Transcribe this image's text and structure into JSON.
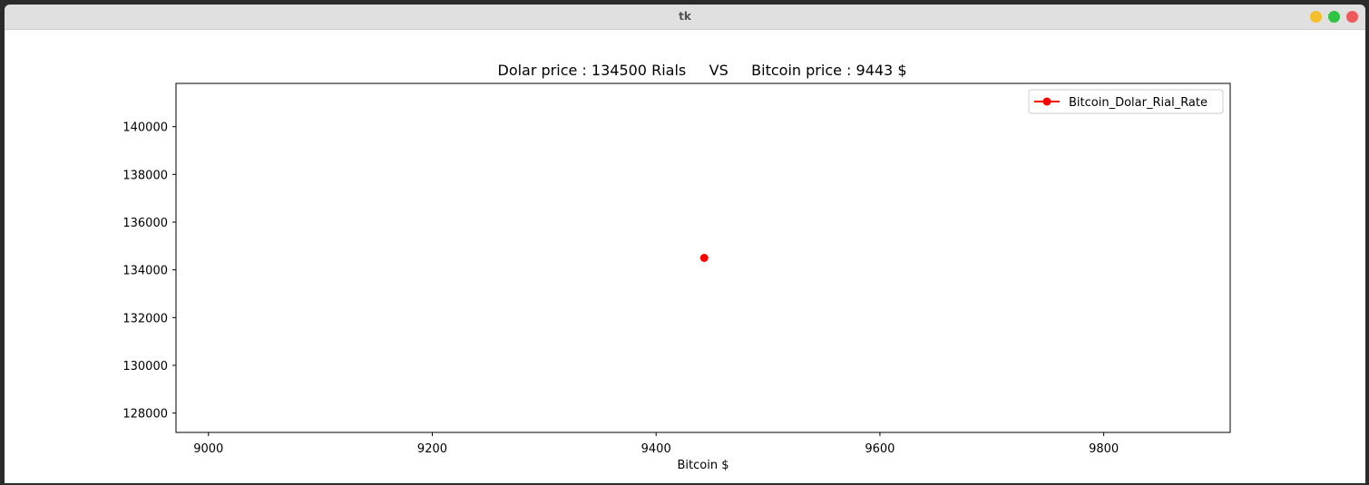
{
  "window": {
    "title": "tk",
    "buttons": {
      "minimize_color": "#f5bf2c",
      "maximize_color": "#2fc43f",
      "close_color": "#f0595a"
    }
  },
  "chart_data": {
    "type": "line",
    "title": "Dolar price : 134500 Rials     VS     Bitcoin price : 9443 $",
    "xlabel": "Bitcoin $",
    "ylabel": "",
    "xlim": [
      8971,
      9913
    ],
    "ylim": [
      127189,
      141811
    ],
    "xticks": [
      9000,
      9200,
      9400,
      9600,
      9800
    ],
    "xtick_labels": [
      "9000",
      "9200",
      "9400",
      "9600",
      "9800"
    ],
    "yticks": [
      128000,
      130000,
      132000,
      134000,
      136000,
      138000,
      140000
    ],
    "ytick_labels": [
      "128000",
      "130000",
      "132000",
      "134000",
      "136000",
      "138000",
      "140000"
    ],
    "grid": false,
    "legend_position": "upper right",
    "series": [
      {
        "name": "Bitcoin_Dolar_Rial_Rate",
        "color": "#ff0000",
        "marker": "circle",
        "x": [
          9443
        ],
        "y": [
          134500
        ]
      }
    ]
  }
}
